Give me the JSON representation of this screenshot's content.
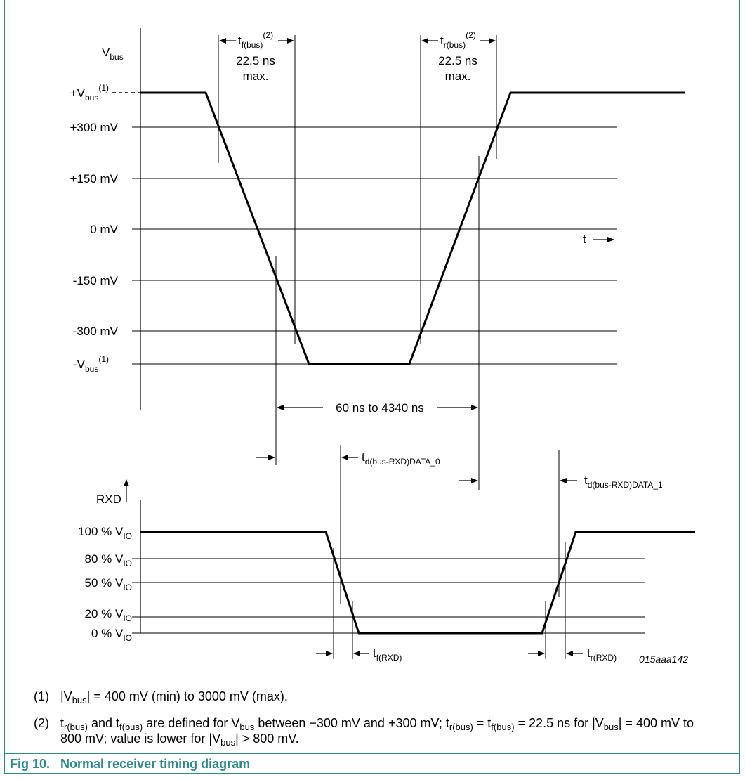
{
  "diagram": {
    "top": {
      "axis_label": "Vbus",
      "levels": [
        {
          "main": "+V",
          "sub": "bus",
          "sup": "(1)"
        },
        {
          "main": "+300 mV"
        },
        {
          "main": "+150 mV"
        },
        {
          "main": "0 mV"
        },
        {
          "main": "-150 mV"
        },
        {
          "main": "-300 mV"
        },
        {
          "main": "-V",
          "sub": "bus",
          "sup": "(1)"
        }
      ],
      "fall_label": {
        "main": "t",
        "sub": "f(bus)",
        "sup": "(2)",
        "value": "22.5 ns",
        "value2": "max."
      },
      "rise_label": {
        "main": "t",
        "sub": "r(bus)",
        "sup": "(2)",
        "value": "22.5 ns",
        "value2": "max."
      },
      "time_label": "t",
      "bit_time": "60 ns to 4340 ns"
    },
    "delays": {
      "data0": {
        "main": "t",
        "sub": "d(bus-RXD)DATA_0"
      },
      "data1": {
        "main": "t",
        "sub": "d(bus-RXD)DATA_1"
      }
    },
    "bottom": {
      "axis_label": "RXD",
      "levels": [
        {
          "main": "100 % V",
          "sub": "IO"
        },
        {
          "main": "80 % V",
          "sub": "IO"
        },
        {
          "main": "50 % V",
          "sub": "IO"
        },
        {
          "main": "20 % V",
          "sub": "IO"
        },
        {
          "main": "0 % V",
          "sub": "IO"
        }
      ],
      "fall_label": {
        "main": "t",
        "sub": "f(RXD)"
      },
      "rise_label": {
        "main": "t",
        "sub": "r(RXD)"
      },
      "figure_code": "015aaa142"
    }
  },
  "notes": [
    {
      "num": "(1)",
      "parts": [
        "|V",
        "bus",
        "| = 400 mV (min) to 3000 mV (max)."
      ]
    },
    {
      "num": "(2)",
      "parts": [
        "t",
        "r(bus)",
        " and t",
        "f(bus)",
        " are defined for V",
        "bus",
        " between −300 mV and +300 mV; t",
        "r(bus)",
        " = t",
        "f(bus)",
        " = 22.5 ns for |V",
        "bus",
        "| = 400 mV to 800 mV; value is lower for |V",
        "bus",
        "| > 800 mV."
      ]
    }
  ],
  "caption": {
    "number": "Fig 10.",
    "title": "Normal receiver timing diagram"
  },
  "colors": {
    "accent": "#2a8a8a"
  }
}
